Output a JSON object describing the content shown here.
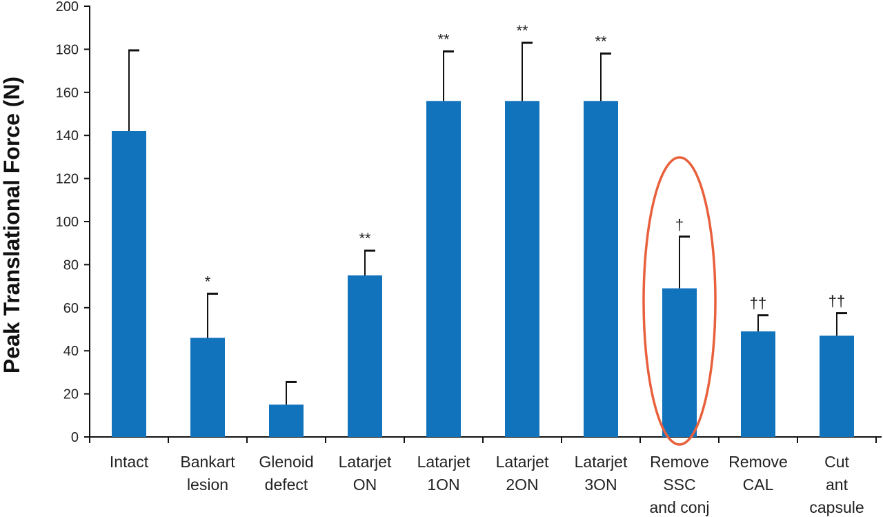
{
  "chart_data": {
    "type": "bar",
    "title": "",
    "xlabel": "",
    "ylabel": "Peak Translational Force (N)",
    "ylim": [
      0,
      200
    ],
    "yticks": [
      0,
      20,
      40,
      60,
      80,
      100,
      120,
      140,
      160,
      180,
      200
    ],
    "grid": false,
    "categories": [
      [
        "Intact"
      ],
      [
        "Bankart",
        "lesion"
      ],
      [
        "Glenoid",
        "defect"
      ],
      [
        "Latarjet",
        "ON"
      ],
      [
        "Latarjet",
        "1ON"
      ],
      [
        "Latarjet",
        "2ON"
      ],
      [
        "Latarjet",
        "3ON"
      ],
      [
        "Remove",
        "SSC",
        "and conj"
      ],
      [
        "Remove",
        "CAL"
      ],
      [
        "Cut",
        "ant",
        "capsule"
      ]
    ],
    "values": [
      142,
      46,
      15,
      75,
      156,
      156,
      156,
      69,
      49,
      47
    ],
    "error_upper": [
      179.5,
      66.5,
      25.5,
      86.5,
      179,
      183,
      178,
      93,
      56.5,
      57.5
    ],
    "annotations": [
      "",
      "*",
      "",
      "**",
      "**",
      "**",
      "**",
      "†",
      "††",
      "††"
    ],
    "highlight": {
      "category_index": 7,
      "shape": "ellipse"
    },
    "colors": {
      "bar": "#1273bd",
      "highlight": "#e8603c",
      "axis": "#111111"
    }
  }
}
